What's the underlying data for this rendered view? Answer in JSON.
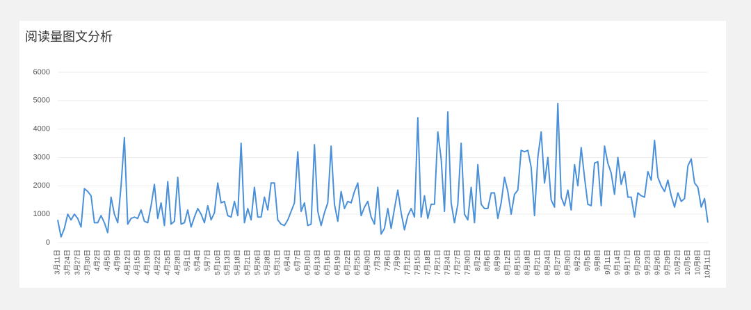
{
  "chart_data": {
    "type": "line",
    "title": "阅读量图文分析",
    "categories": [
      "3月11日",
      null,
      null,
      "3月24日",
      null,
      null,
      "3月27日",
      null,
      null,
      "3月30日",
      null,
      null,
      "4月2日",
      null,
      null,
      "4月5日",
      null,
      null,
      "4月9日",
      null,
      null,
      "4月12日",
      null,
      null,
      "4月15日",
      null,
      null,
      "4月19日",
      null,
      null,
      "4月22日",
      null,
      null,
      "4月25日",
      null,
      null,
      "4月28日",
      null,
      null,
      "5月1日",
      null,
      null,
      "5月4日",
      null,
      null,
      "5月7日",
      null,
      null,
      "5月10日",
      null,
      null,
      "5月13日",
      null,
      null,
      "5月18日",
      null,
      null,
      "5月21日",
      null,
      null,
      "5月26日",
      null,
      null,
      "5月28日",
      null,
      null,
      "5月31日",
      null,
      null,
      "6月4日",
      null,
      null,
      "6月7日",
      null,
      null,
      "6月10日",
      null,
      null,
      "6月13日",
      null,
      null,
      "6月16日",
      null,
      null,
      "6月19日",
      null,
      null,
      "6月22日",
      null,
      null,
      "6月25日",
      null,
      null,
      "6月30日",
      null,
      null,
      "7月3日",
      null,
      null,
      "7月6日",
      null,
      null,
      "7月9日",
      null,
      null,
      "7月12日",
      null,
      null,
      "7月15日",
      null,
      null,
      "7月18日",
      null,
      null,
      "7月21日",
      null,
      null,
      "7月24日",
      null,
      null,
      "7月27日",
      null,
      null,
      "7月30日",
      null,
      null,
      "8月2日",
      null,
      null,
      "8月6日",
      null,
      null,
      "8月9日",
      null,
      null,
      "8月12日",
      null,
      null,
      "8月15日",
      null,
      null,
      "8月18日",
      null,
      null,
      "8月21日",
      null,
      null,
      "8月24日",
      null,
      null,
      "8月27日",
      null,
      null,
      "8月30日",
      null,
      null,
      "9月2日",
      null,
      null,
      "9月5日",
      null,
      null,
      "9月8日",
      null,
      null,
      "9月11日",
      null,
      null,
      "9月14日",
      null,
      null,
      "9月17日",
      null,
      null,
      "9月20日",
      null,
      null,
      "9月23日",
      null,
      null,
      "9月26日",
      null,
      null,
      "9月29日",
      null,
      null,
      "10月2日",
      null,
      null,
      "10月5日",
      null,
      null,
      "10月8日",
      null,
      null,
      "10月11日"
    ],
    "values": [
      800,
      200,
      500,
      1000,
      800,
      1000,
      850,
      550,
      1900,
      1800,
      1650,
      700,
      700,
      950,
      700,
      350,
      1600,
      1000,
      700,
      2000,
      3700,
      650,
      850,
      900,
      850,
      1150,
      750,
      700,
      1300,
      2050,
      850,
      1400,
      600,
      2150,
      650,
      750,
      2300,
      650,
      700,
      1150,
      550,
      900,
      1200,
      1000,
      700,
      1300,
      800,
      1050,
      2100,
      1400,
      1450,
      950,
      900,
      1450,
      950,
      3500,
      700,
      1200,
      800,
      1950,
      900,
      900,
      1600,
      1150,
      2100,
      2100,
      800,
      650,
      600,
      800,
      1100,
      1400,
      3200,
      1100,
      1400,
      600,
      650,
      3450,
      1100,
      600,
      1050,
      1400,
      3400,
      1350,
      750,
      1800,
      1200,
      1450,
      1400,
      1800,
      2100,
      950,
      1250,
      1450,
      900,
      650,
      1950,
      300,
      500,
      1200,
      500,
      1200,
      1850,
      1050,
      450,
      950,
      1200,
      900,
      4400,
      900,
      1650,
      850,
      1350,
      1350,
      3900,
      2950,
      1100,
      4600,
      1400,
      700,
      1350,
      3500,
      1000,
      800,
      1950,
      700,
      2750,
      1350,
      1200,
      1200,
      1750,
      1750,
      850,
      1400,
      2300,
      1800,
      1000,
      1700,
      1850,
      3250,
      3200,
      3250,
      2650,
      950,
      3000,
      3900,
      2100,
      3000,
      1500,
      1250,
      4900,
      1600,
      1300,
      1850,
      1150,
      2750,
      2000,
      3350,
      2300,
      1350,
      1300,
      2800,
      2850,
      1300,
      3400,
      2800,
      2450,
      1700,
      3000,
      2050,
      2500,
      1600,
      1600,
      900,
      1750,
      1650,
      1600,
      2500,
      2200,
      3600,
      2300,
      2000,
      1800,
      2200,
      1650,
      1250,
      1750,
      1450,
      1550,
      2700,
      2950,
      2100,
      1950,
      1250,
      1550,
      700
    ],
    "color": "#4a90d9",
    "ylim": [
      0,
      6000
    ],
    "yticks": [
      0,
      1000,
      2000,
      3000,
      4000,
      5000,
      6000
    ],
    "grid": true
  }
}
